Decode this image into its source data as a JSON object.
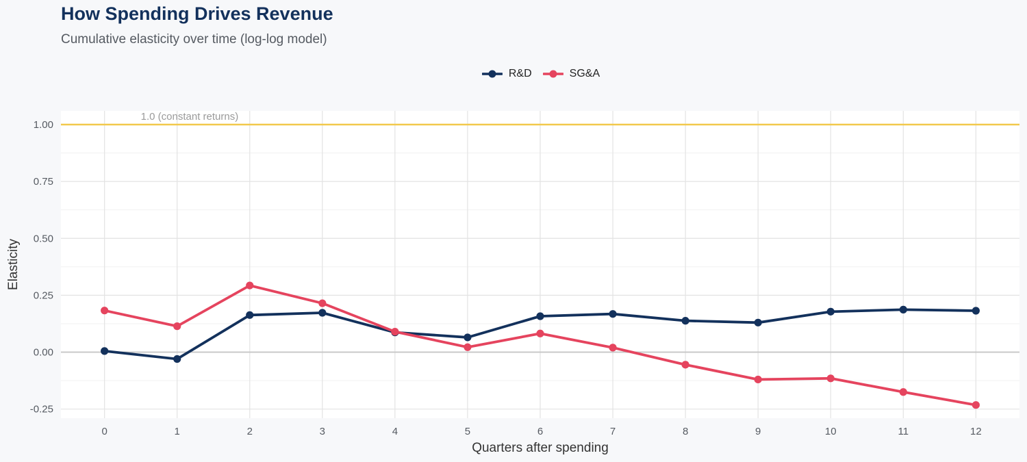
{
  "chart_data": {
    "type": "line",
    "title": "How Spending Drives Revenue",
    "subtitle": "Cumulative elasticity over time (log-log model)",
    "xlabel": "Quarters after spending",
    "ylabel": "Elasticity",
    "x": [
      0,
      1,
      2,
      3,
      4,
      5,
      6,
      7,
      8,
      9,
      10,
      11,
      12
    ],
    "xlim": [
      -0.6,
      12.6
    ],
    "ylim": [
      -0.29,
      1.06
    ],
    "yticks": [
      -0.25,
      0,
      0.25,
      0.5,
      0.75,
      1.0
    ],
    "ytick_labels": [
      "-0.25",
      "0.00",
      "0.25",
      "0.50",
      "0.75",
      "1.00"
    ],
    "grid": true,
    "legend": "top-center",
    "series": [
      {
        "name": "R&D",
        "color": "#13315c",
        "values": [
          0.005,
          -0.03,
          0.163,
          0.173,
          0.087,
          0.065,
          0.158,
          0.168,
          0.138,
          0.13,
          0.178,
          0.187,
          0.182
        ]
      },
      {
        "name": "SG&A",
        "color": "#e5445e",
        "values": [
          0.183,
          0.114,
          0.293,
          0.215,
          0.09,
          0.022,
          0.082,
          0.02,
          -0.055,
          -0.12,
          -0.115,
          -0.175,
          -0.232
        ]
      }
    ],
    "reference_line": {
      "y": 1.0,
      "label": "1.0 (constant returns)",
      "color": "#f2c94c"
    },
    "zero_line_color": "#c8c8c8"
  }
}
